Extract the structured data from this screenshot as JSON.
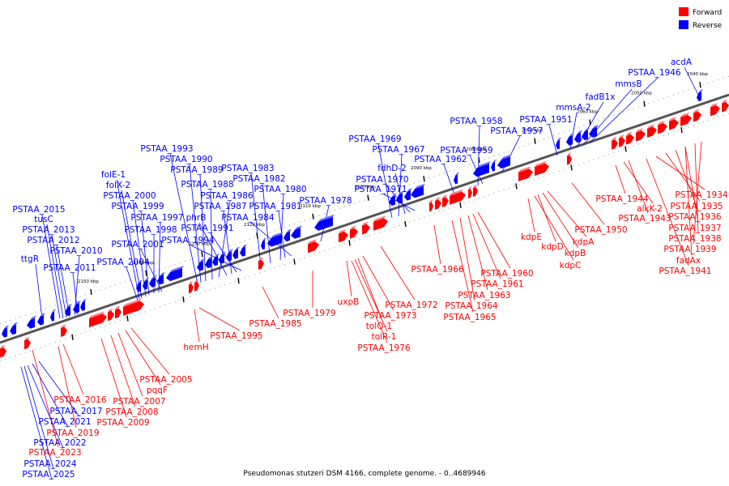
{
  "legend": {
    "forward_label": "Forward",
    "reverse_label": "Reverse",
    "forward_color": "#ff0000",
    "reverse_color": "#0000ff"
  },
  "footer": "Pseudomonas stutzeri DSM 4166, complete genome. - 0..4689946",
  "colors": {
    "forward": "#ff0000",
    "reverse": "#0000ff",
    "backbone": "#555555"
  },
  "ticks": [
    "2040 kbp",
    "2050 kbp",
    "2060 kbp",
    "2070 kbp",
    "2080 kbp",
    "2090 kbp",
    "2100 kbp",
    "2110 kbp",
    "2120 kbp",
    "2130 kbp",
    "2140 kbp",
    "2150 kbp"
  ],
  "reverse_genes": [
    "ttgR",
    "PSTAA_2015",
    "tusC",
    "PSTAA_2013",
    "PSTAA_2012",
    "PSTAA_2010",
    "PSTAA_2011",
    "PSTAA_2004",
    "folE-1",
    "folX-2",
    "PSTAA_2000",
    "PSTAA_1999",
    "PSTAA_1998",
    "PSTAA_1997",
    "PSTAA_2001",
    "PSTAA_1993",
    "PSTAA_1990",
    "PSTAA_1989",
    "PSTAA_1988",
    "PSTAA_1986",
    "phrB",
    "PSTAA_1987",
    "PSTAA_1991",
    "PSTAA_1994",
    "PSTAA_1983",
    "PSTAA_1982",
    "PSTAA_1980",
    "PSTAA_1981",
    "PSTAA_1984",
    "PSTAA_1969",
    "PSTAA_1967",
    "fdhD-2",
    "PSTAA_1970",
    "PSTAA_1971",
    "PSTAA_1978",
    "PSTAA_1958",
    "PSTAA_1959",
    "PSTAA_1962",
    "PSTAA_1957",
    "PSTAA_1951",
    "mmsA-2",
    "fadB1x",
    "mmsB",
    "PSTAA_1946",
    "acdA",
    "PSTAA_2017",
    "PSTAA_2021",
    "PSTAA_2022",
    "PSTAA_2024",
    "PSTAA_2025"
  ],
  "forward_genes": [
    "PSTAA_2016",
    "PSTAA_2019",
    "PSTAA_2023",
    "PSTAA_2005",
    "pqqF",
    "PSTAA_2007",
    "PSTAA_2008",
    "PSTAA_2009",
    "hemH",
    "PSTAA_1995",
    "PSTAA_1985",
    "PSTAA_1979",
    "uxpB",
    "PSTAA_1973",
    "tolQ-1",
    "tolR-1",
    "PSTAA_1976",
    "PSTAA_1972",
    "PSTAA_1966",
    "PSTAA_1960",
    "PSTAA_1961",
    "PSTAA_1963",
    "PSTAA_1964",
    "PSTAA_1965",
    "kdpE",
    "kdpD",
    "kdpA",
    "kdpB",
    "kdpC",
    "PSTAA_1950",
    "PSTAA_1944",
    "alkK-2",
    "PSTAA_1943",
    "PSTAA_1934",
    "PSTAA_1935",
    "PSTAA_1936",
    "PSTAA_1937",
    "PSTAA_1938",
    "PSTAA_1939",
    "fadAx",
    "PSTAA_1941"
  ]
}
